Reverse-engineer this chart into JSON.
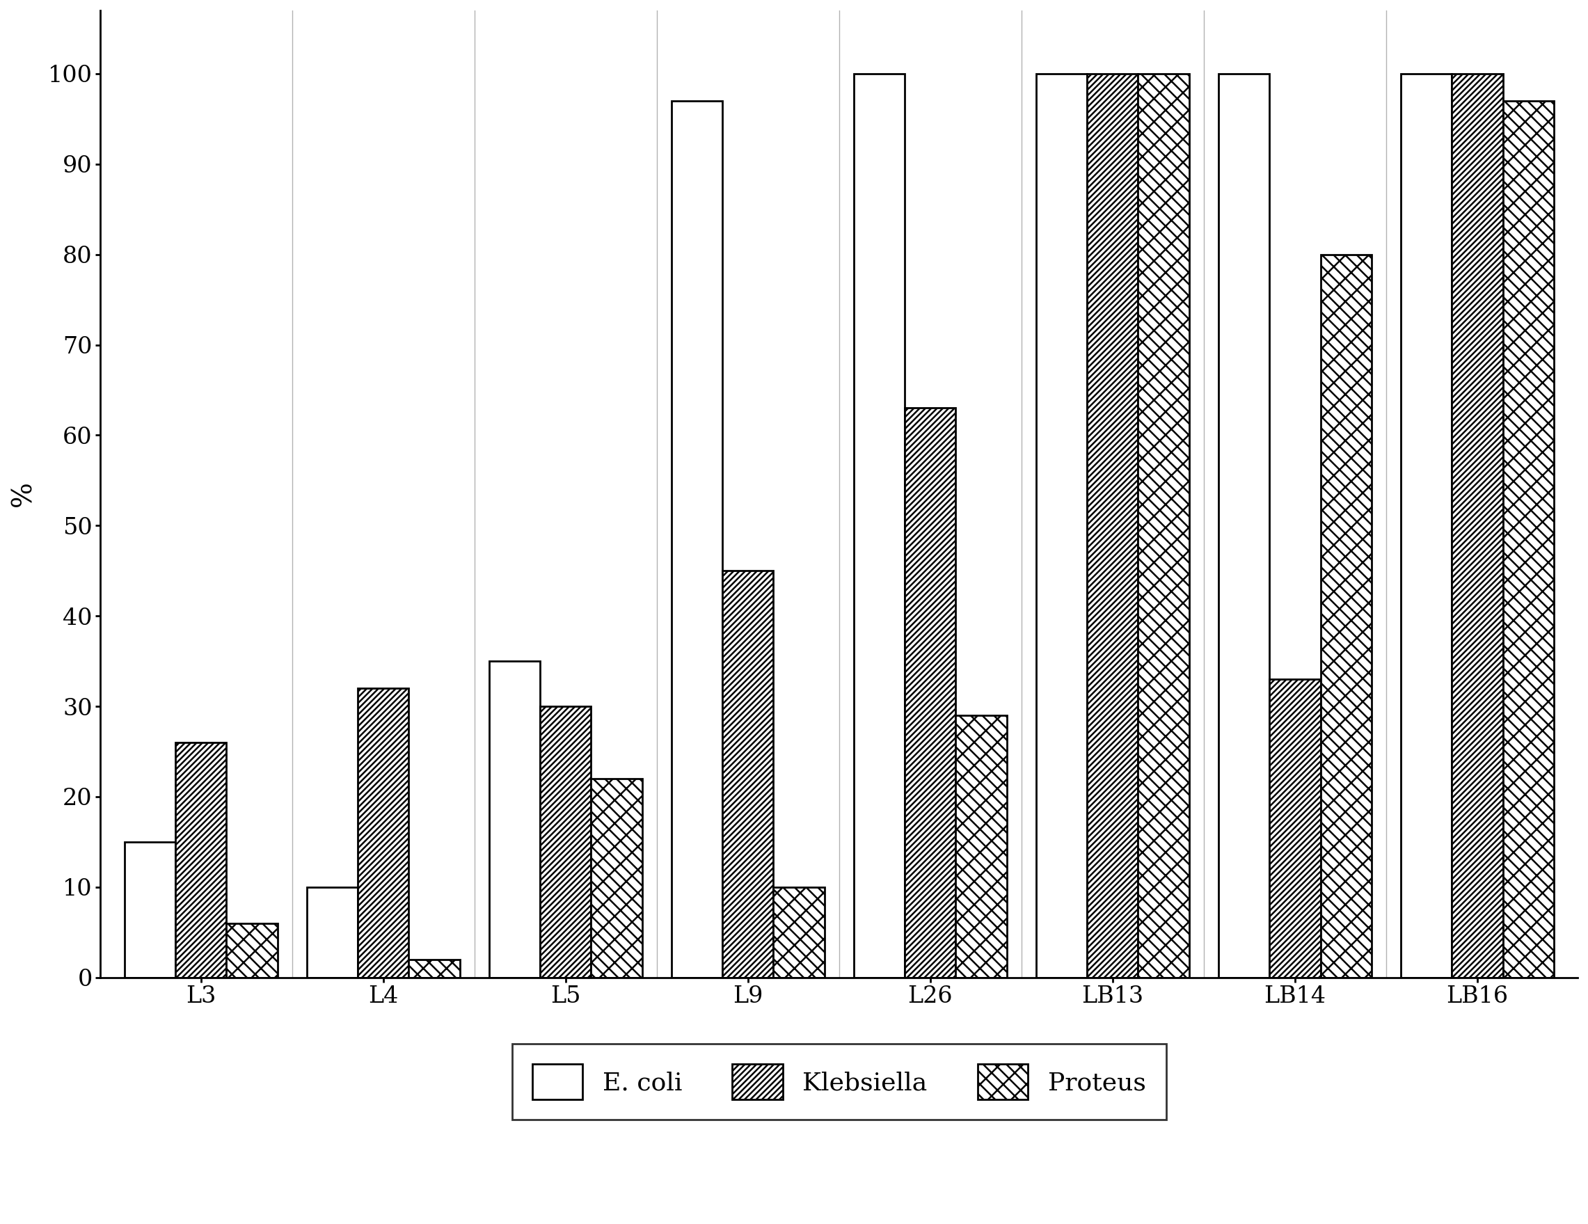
{
  "categories": [
    "L3",
    "L4",
    "L5",
    "L9",
    "L26",
    "LB13",
    "LB14",
    "LB16"
  ],
  "ecoli": [
    15,
    10,
    35,
    97,
    100,
    100,
    100,
    100
  ],
  "klebsiella": [
    26,
    32,
    30,
    45,
    63,
    100,
    33,
    100
  ],
  "proteus": [
    6,
    2,
    22,
    10,
    29,
    100,
    80,
    97
  ],
  "ylabel": "%",
  "ylim": [
    0,
    110
  ],
  "yticks": [
    0,
    10,
    20,
    30,
    40,
    50,
    60,
    70,
    80,
    90,
    100
  ],
  "legend_labels": [
    "E. coli",
    "Klebsiella",
    "Proteus"
  ],
  "bar_width": 0.28,
  "background_color": "#ffffff",
  "hatch_ecoli": "",
  "hatch_klebsiella": "////",
  "hatch_proteus": "/\\\\",
  "edgecolor": "#000000",
  "facecolor_ecoli": "#ffffff",
  "facecolor_klebsiella": "#ffffff",
  "facecolor_proteus": "#ffffff"
}
